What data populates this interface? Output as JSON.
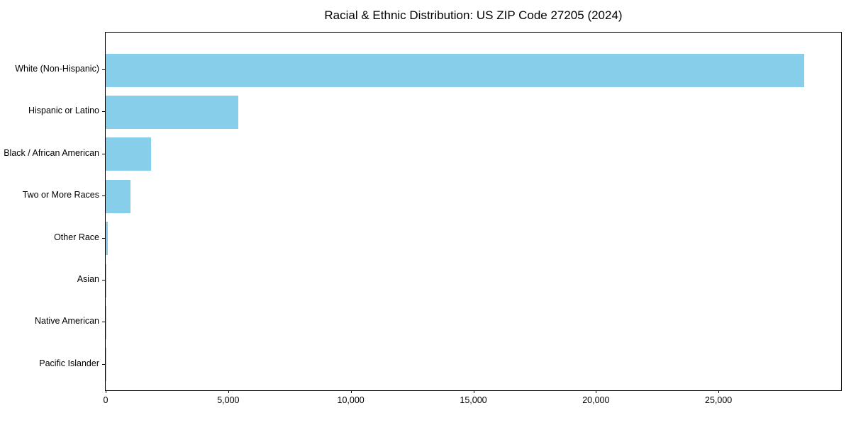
{
  "chart_data": {
    "type": "bar",
    "orientation": "horizontal",
    "title": "Racial & Ethnic Distribution: US ZIP Code 27205 (2024)",
    "categories": [
      "White (Non-Hispanic)",
      "Hispanic or Latino",
      "Black / African American",
      "Two or More Races",
      "Other Race",
      "Asian",
      "Native American",
      "Pacific Islander"
    ],
    "values": [
      28500,
      5400,
      1850,
      1000,
      100,
      20,
      10,
      5
    ],
    "xlabel": "",
    "ylabel": "",
    "xlim": [
      0,
      30000
    ],
    "x_ticks": [
      0,
      5000,
      10000,
      15000,
      20000,
      25000
    ],
    "x_tick_labels": [
      "0",
      "5,000",
      "10,000",
      "15,000",
      "20,000",
      "25,000"
    ],
    "grid": false,
    "legend": null,
    "bar_color": "#87CEEB",
    "axis_color": "#000000",
    "background_color": "#FFFFFF"
  }
}
